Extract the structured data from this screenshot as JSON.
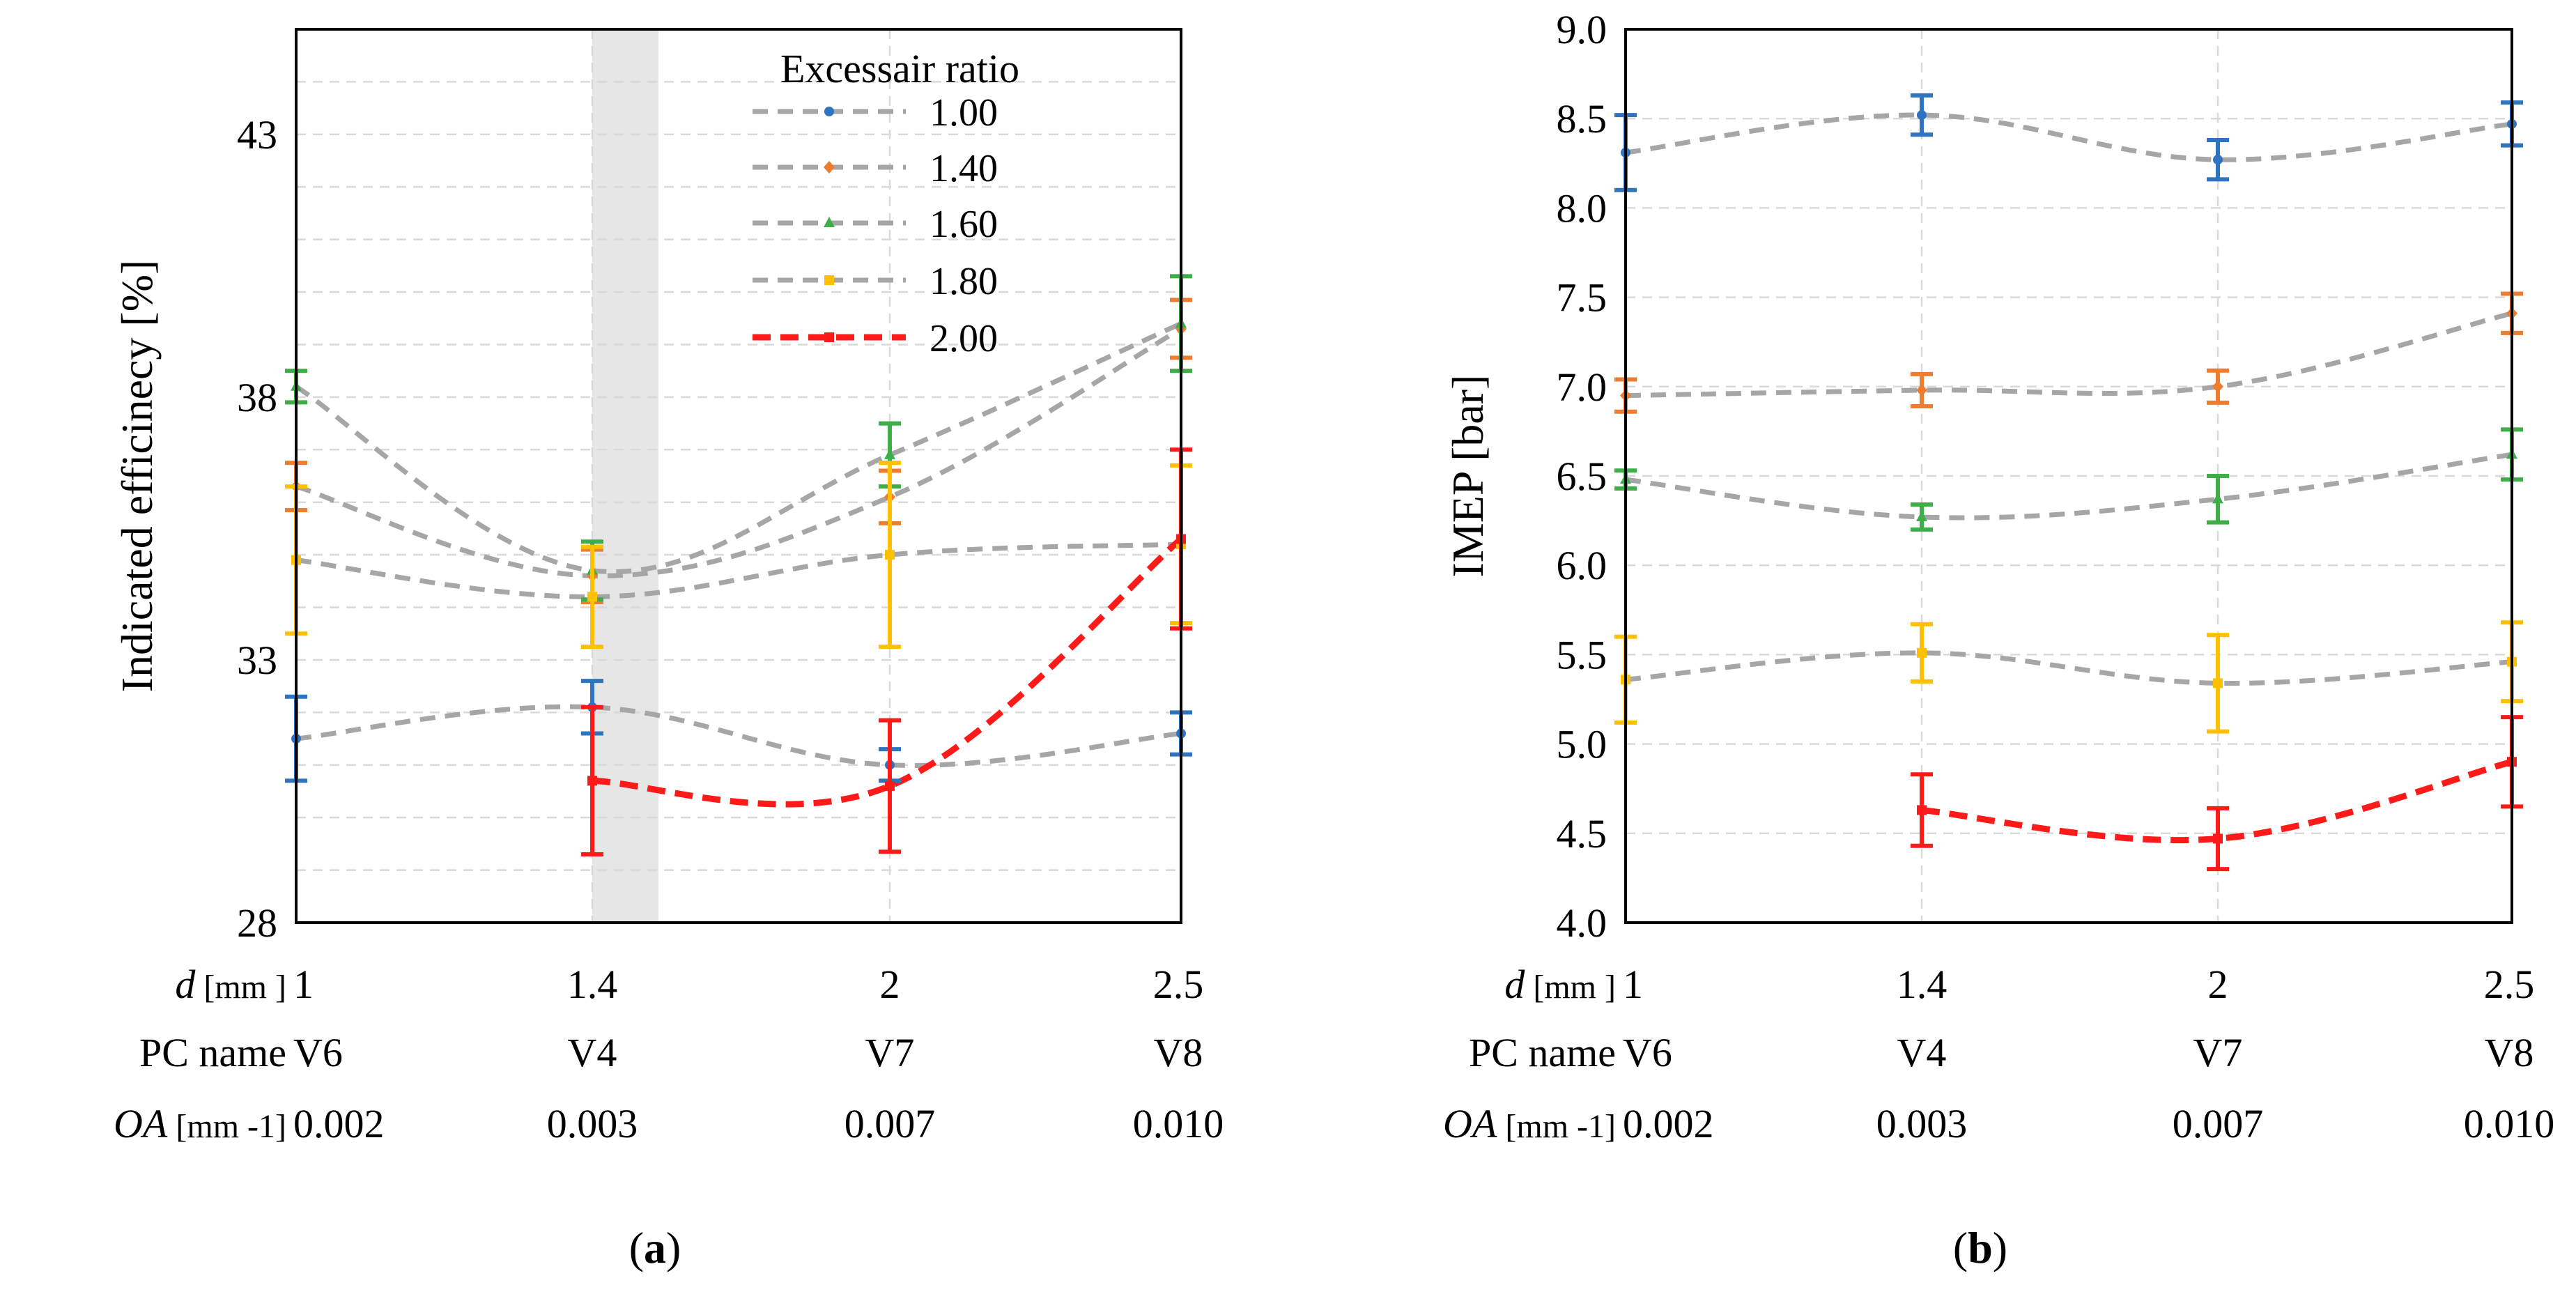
{
  "colors": {
    "blue": "#2f74c0",
    "orange": "#ed7d31",
    "green": "#3fae49",
    "yellow": "#ffc000",
    "red": "#ff1a1a",
    "gray": "#a6a6a6",
    "shade": "#e6e6e6"
  },
  "chart_data": [
    {
      "type": "line",
      "panel_label": "(a)",
      "ylabel": "Indicated efficinecy [%]",
      "ylim": [
        28,
        45
      ],
      "yticks": [
        "28",
        "33",
        "38",
        "43"
      ],
      "grid": true,
      "categories": [
        "1",
        "1.4",
        "2",
        "2.5"
      ],
      "x": [
        1,
        1.4,
        2,
        2.5
      ],
      "category_rows": [
        {
          "label_italic": "d",
          "label_unit": " [mm ]",
          "values": [
            "1",
            "1.4",
            "2",
            "2.5"
          ]
        },
        {
          "label_italic": "",
          "label_unit": "PC name",
          "values": [
            "V6",
            "V4",
            "V7",
            "V8"
          ]
        },
        {
          "label_italic": "OA",
          "label_unit": " [mm -1]",
          "values": [
            "0.002",
            "0.003",
            "0.007",
            "0.010"
          ]
        }
      ],
      "shaded_region": [
        1.4,
        1.5
      ],
      "legend": {
        "title": "Excessair ratio",
        "position": "top-right"
      },
      "series": [
        {
          "name": "1.00",
          "color": "blue",
          "marker": "circle",
          "values": [
            31.5,
            32.1,
            31.0,
            31.6
          ],
          "errors": [
            0.8,
            0.5,
            0.3,
            0.4
          ]
        },
        {
          "name": "1.40",
          "color": "orange",
          "marker": "diamond",
          "values": [
            36.3,
            34.6,
            36.1,
            39.3
          ],
          "errors": [
            0.45,
            0.5,
            0.5,
            0.55
          ]
        },
        {
          "name": "1.60",
          "color": "green",
          "marker": "triangle",
          "values": [
            38.2,
            34.7,
            36.9,
            39.4
          ],
          "errors": [
            0.3,
            0.55,
            0.6,
            0.9
          ]
        },
        {
          "name": "1.80",
          "color": "yellow",
          "marker": "square",
          "values": [
            34.9,
            34.2,
            35.0,
            35.2
          ],
          "errors": [
            1.4,
            0.95,
            1.75,
            1.5
          ]
        },
        {
          "name": "2.00",
          "color": "red",
          "marker": "square",
          "values": [
            null,
            30.7,
            30.6,
            35.3
          ],
          "errors": [
            null,
            1.4,
            1.25,
            1.7
          ]
        }
      ]
    },
    {
      "type": "line",
      "panel_label": "(b)",
      "ylabel": "IMEP  [bar]",
      "ylim": [
        4.0,
        9.0
      ],
      "yticks": [
        "4.0",
        "4.5",
        "5.0",
        "5.5",
        "6.0",
        "6.5",
        "7.0",
        "7.5",
        "8.0",
        "8.5",
        "9.0"
      ],
      "grid": true,
      "categories": [
        "1",
        "1.4",
        "2",
        "2.5"
      ],
      "x": [
        1,
        1.4,
        2,
        2.5
      ],
      "category_rows": [
        {
          "label_italic": "d",
          "label_unit": " [mm ]",
          "values": [
            "1",
            "1.4",
            "2",
            "2.5"
          ]
        },
        {
          "label_italic": "",
          "label_unit": "PC name",
          "values": [
            "V6",
            "V4",
            "V7",
            "V8"
          ]
        },
        {
          "label_italic": "OA",
          "label_unit": " [mm -1]",
          "values": [
            "0.002",
            "0.003",
            "0.007",
            "0.010"
          ]
        }
      ],
      "series": [
        {
          "name": "1.00",
          "color": "blue",
          "marker": "circle",
          "values": [
            8.31,
            8.52,
            8.27,
            8.47
          ],
          "errors": [
            0.21,
            0.11,
            0.11,
            0.12
          ]
        },
        {
          "name": "1.40",
          "color": "orange",
          "marker": "diamond",
          "values": [
            6.95,
            6.98,
            7.0,
            7.41
          ],
          "errors": [
            0.09,
            0.09,
            0.09,
            0.11
          ]
        },
        {
          "name": "1.60",
          "color": "green",
          "marker": "triangle",
          "values": [
            6.48,
            6.27,
            6.37,
            6.62
          ],
          "errors": [
            0.05,
            0.07,
            0.13,
            0.14
          ]
        },
        {
          "name": "1.80",
          "color": "yellow",
          "marker": "square",
          "values": [
            5.36,
            5.51,
            5.34,
            5.46
          ],
          "errors": [
            0.24,
            0.16,
            0.27,
            0.22
          ]
        },
        {
          "name": "2.00",
          "color": "red",
          "marker": "square",
          "values": [
            null,
            4.63,
            4.47,
            4.9
          ],
          "errors": [
            null,
            0.2,
            0.17,
            0.25
          ]
        }
      ]
    }
  ]
}
